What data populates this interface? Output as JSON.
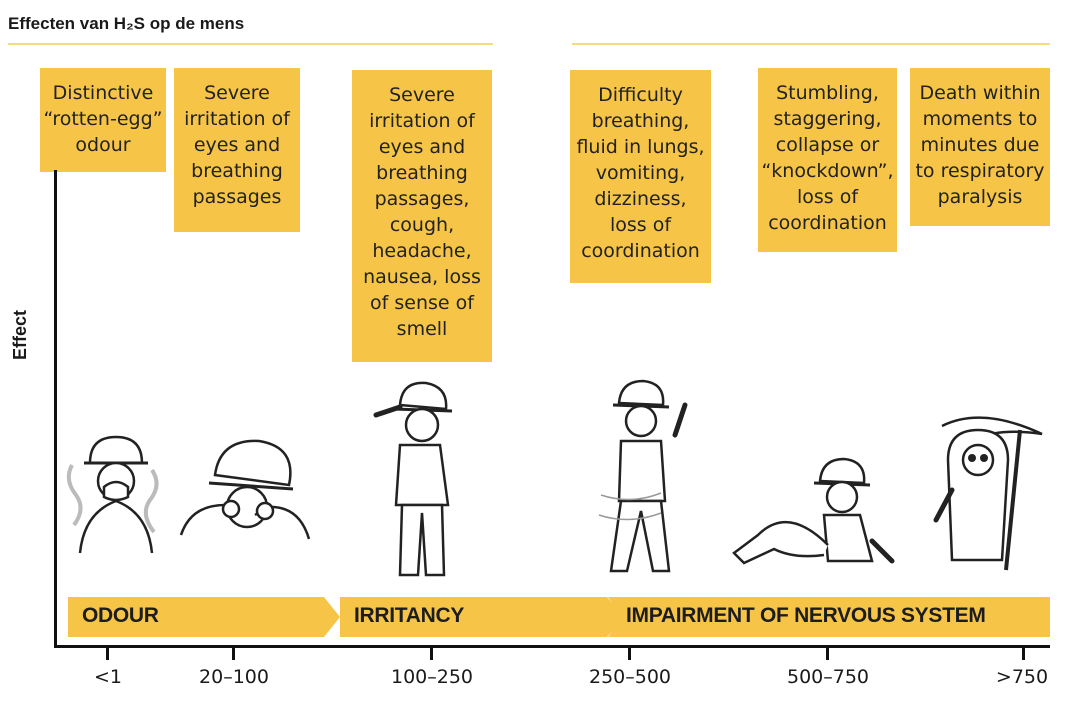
{
  "title": "Effecten van H₂S op de mens",
  "y_axis_label": "Effect",
  "colors": {
    "box": "#f6c548",
    "rule": "#f5dc7e",
    "axis": "#111111"
  },
  "effects": [
    {
      "text": "Distinctive\n“rotten-egg”\nodour"
    },
    {
      "text": "Severe\nirritation of\neyes and\nbreathing\npassages"
    },
    {
      "text": "Severe\nirritation of\neyes and\nbreathing\npassages,\ncough,\nheadache,\nnausea, loss\nof sense of\nsmell"
    },
    {
      "text": "Difficulty\nbreathing,\nfluid in lungs,\nvomiting,\ndizziness,\nloss of\ncoordination"
    },
    {
      "text": "Stumbling,\nstaggering,\ncollapse or\n“knockdown”,\nloss of\ncoordination"
    },
    {
      "text": "Death within\nmoments to\nminutes due\nto respiratory\nparalysis"
    }
  ],
  "phases": [
    {
      "label": "ODOUR"
    },
    {
      "label": "IRRITANCY"
    },
    {
      "label": "IMPAIRMENT OF NERVOUS SYSTEM"
    }
  ],
  "ranges": [
    "<1",
    "20–100",
    "100–250",
    "250–500",
    "500–750",
    ">750"
  ],
  "figures": [
    {
      "icon": "worker-covering-nose-icon"
    },
    {
      "icon": "worker-rubbing-eyes-icon"
    },
    {
      "icon": "worker-coughing-icon"
    },
    {
      "icon": "worker-staggering-icon"
    },
    {
      "icon": "worker-collapsed-icon"
    },
    {
      "icon": "grim-reaper-icon"
    }
  ]
}
